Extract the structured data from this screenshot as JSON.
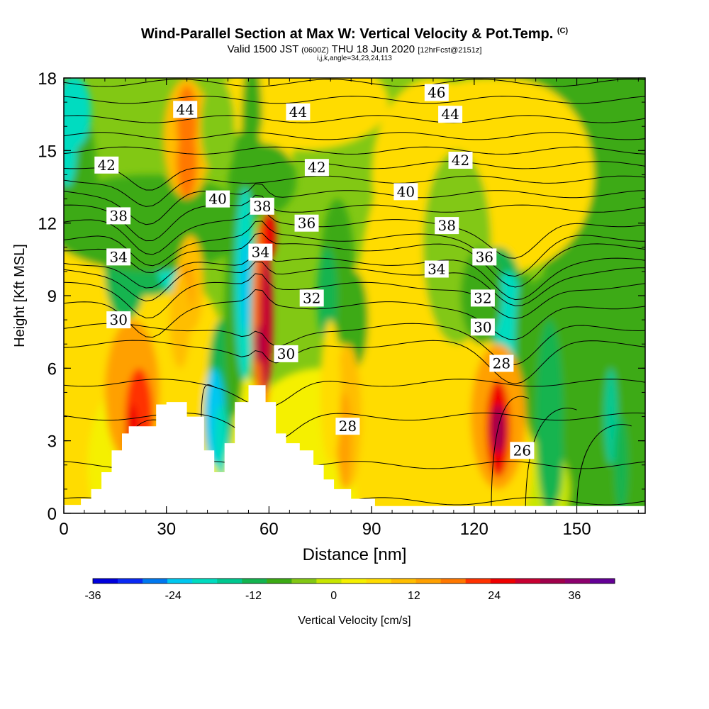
{
  "title": {
    "main": "Wind-Parallel Section at Max W: Vertical Velocity & Pot.Temp.",
    "copyright": "(C)",
    "sub_valid": "Valid 1500 JST",
    "sub_utc": "(0600Z)",
    "sub_date": "THU 18 Jun 2020",
    "sub_fcst": "[12hrFcst@2151z]",
    "info": "i,j,k,angle=34,23,24,113"
  },
  "chart_data": {
    "type": "heatmap",
    "xlabel": "Distance [nm]",
    "ylabel": "Height [Kft MSL]",
    "xlim": [
      0,
      170
    ],
    "ylim": [
      0,
      18
    ],
    "x_ticks": [
      0,
      30,
      60,
      90,
      120,
      150
    ],
    "y_ticks": [
      0,
      3,
      6,
      9,
      12,
      15,
      18
    ],
    "grid": false,
    "colorbar": {
      "label": "Vertical Velocity [cm/s]",
      "placement": "bottom",
      "range": [
        -36,
        42
      ],
      "tick_values": [
        -36,
        -24,
        -12,
        0,
        12,
        24,
        36
      ],
      "colors": [
        "#0000dd",
        "#0a2af5",
        "#0078f0",
        "#00c8f0",
        "#00dcc0",
        "#00c890",
        "#14b450",
        "#3caa14",
        "#82c814",
        "#c8e600",
        "#f5f000",
        "#ffdc00",
        "#ffbe00",
        "#ffa000",
        "#ff7800",
        "#ff3200",
        "#f00000",
        "#c80032",
        "#a0004b",
        "#8c006e",
        "#640096"
      ]
    },
    "contour_labels": [
      {
        "text": "46",
        "x": 109,
        "y": 17.4
      },
      {
        "text": "44",
        "x": 35.5,
        "y": 16.7
      },
      {
        "text": "44",
        "x": 68.5,
        "y": 16.6
      },
      {
        "text": "44",
        "x": 113,
        "y": 16.5
      },
      {
        "text": "42",
        "x": 12.5,
        "y": 14.4
      },
      {
        "text": "42",
        "x": 74,
        "y": 14.3
      },
      {
        "text": "42",
        "x": 116,
        "y": 14.6
      },
      {
        "text": "40",
        "x": 45,
        "y": 13.0
      },
      {
        "text": "40",
        "x": 100,
        "y": 13.3
      },
      {
        "text": "38",
        "x": 16,
        "y": 12.3
      },
      {
        "text": "38",
        "x": 58,
        "y": 12.7
      },
      {
        "text": "38",
        "x": 112,
        "y": 11.9
      },
      {
        "text": "36",
        "x": 71,
        "y": 12.0
      },
      {
        "text": "36",
        "x": 123,
        "y": 10.6
      },
      {
        "text": "34",
        "x": 16,
        "y": 10.6
      },
      {
        "text": "34",
        "x": 57.5,
        "y": 10.8
      },
      {
        "text": "34",
        "x": 109,
        "y": 10.1
      },
      {
        "text": "32",
        "x": 72.5,
        "y": 8.9
      },
      {
        "text": "32",
        "x": 122.5,
        "y": 8.9
      },
      {
        "text": "30",
        "x": 16,
        "y": 8.0
      },
      {
        "text": "30",
        "x": 65,
        "y": 6.6
      },
      {
        "text": "30",
        "x": 122.5,
        "y": 7.7
      },
      {
        "text": "28",
        "x": 83,
        "y": 3.6
      },
      {
        "text": "28",
        "x": 128,
        "y": 6.2
      },
      {
        "text": "26",
        "x": 134,
        "y": 2.6
      }
    ]
  }
}
